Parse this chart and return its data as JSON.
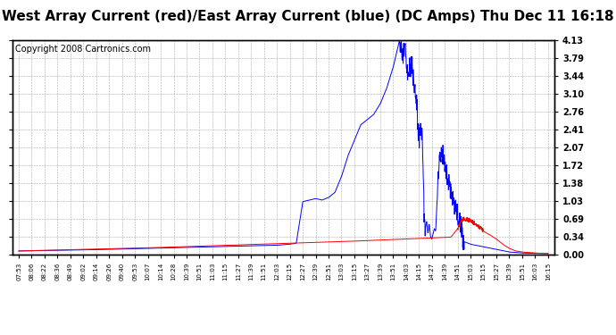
{
  "title": "West Array Current (red)/East Array Current (blue) (DC Amps) Thu Dec 11 16:18",
  "copyright": "Copyright 2008 Cartronics.com",
  "ylabel_right": [
    "4.13",
    "3.79",
    "3.44",
    "3.10",
    "2.76",
    "2.41",
    "2.07",
    "1.72",
    "1.38",
    "1.03",
    "0.69",
    "0.34",
    "0.00"
  ],
  "yticks": [
    4.13,
    3.79,
    3.44,
    3.1,
    2.76,
    2.41,
    2.07,
    1.72,
    1.38,
    1.03,
    0.69,
    0.34,
    0.0
  ],
  "ylim": [
    0.0,
    4.13
  ],
  "xtick_labels": [
    "07:53",
    "08:06",
    "08:22",
    "08:36",
    "08:49",
    "09:02",
    "09:14",
    "09:26",
    "09:40",
    "09:53",
    "10:07",
    "10:14",
    "10:28",
    "10:39",
    "10:51",
    "11:03",
    "11:15",
    "11:27",
    "11:39",
    "11:51",
    "12:03",
    "12:15",
    "12:27",
    "12:39",
    "12:51",
    "13:03",
    "13:15",
    "13:27",
    "13:39",
    "13:51",
    "14:03",
    "14:15",
    "14:27",
    "14:39",
    "14:51",
    "15:03",
    "15:15",
    "15:27",
    "15:39",
    "15:51",
    "16:03",
    "16:15"
  ],
  "background_color": "#ffffff",
  "grid_color": "#aaaaaa",
  "title_fontsize": 11,
  "copyright_fontsize": 7,
  "blue_color": "#0000ff",
  "red_color": "#ff0000"
}
